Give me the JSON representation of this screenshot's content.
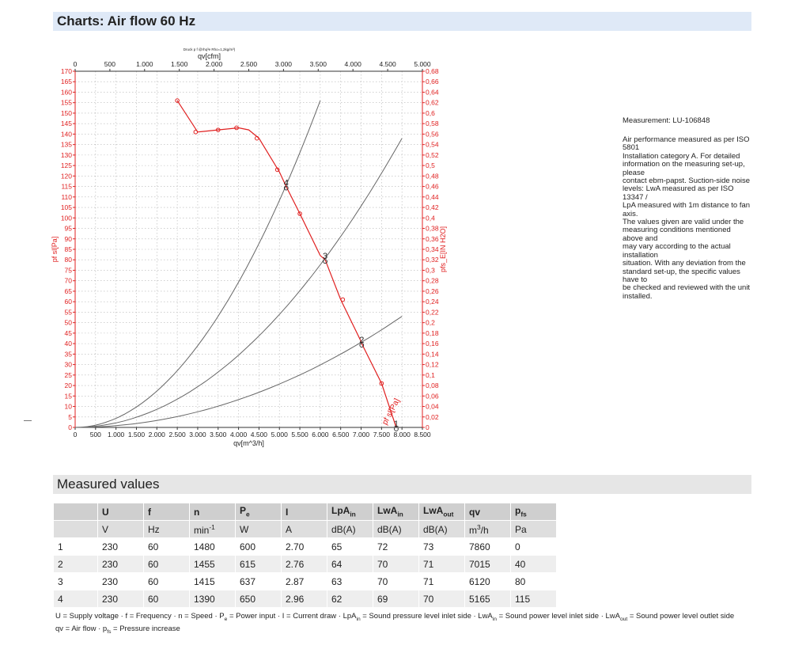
{
  "header": {
    "title": "Charts: Air flow 60 Hz"
  },
  "chart": {
    "small_caption": "Druck p f @rhq³e Rho=1,2kg/m³)",
    "left_axis_label": "pf sl[Pa]",
    "right_axis_label": "pfs_E[IN H2O]",
    "bottom_axis_label": "qv[m^3/h]",
    "top_axis_label": "qv[cfm]",
    "curve_label": "pf sl[Pa]"
  },
  "chart_data": {
    "type": "line",
    "xlabel": "qv[m^3/h]",
    "x2label": "qv[cfm]",
    "ylabel": "pf sl[Pa]",
    "y2label": "pfs_E[IN H2O]",
    "xlim": [
      0,
      8500
    ],
    "x2lim": [
      0,
      5000
    ],
    "ylim": [
      0,
      170
    ],
    "y2lim": [
      0,
      0.68
    ],
    "x_ticks": [
      0,
      500,
      1000,
      1500,
      2000,
      2500,
      3000,
      3500,
      4000,
      4500,
      5000,
      5500,
      6000,
      6500,
      7000,
      7500,
      8000,
      8500
    ],
    "x_tick_labels": [
      "0",
      "500",
      "1.000",
      "1.500",
      "2.000",
      "2.500",
      "3.000",
      "3.500",
      "4.000",
      "4.500",
      "5.000",
      "5.500",
      "6.000",
      "6.500",
      "7.000",
      "7.500",
      "8.000",
      "8.500"
    ],
    "x2_ticks": [
      0,
      500,
      1000,
      1500,
      2000,
      2500,
      3000,
      3500,
      4000,
      4500,
      5000
    ],
    "x2_tick_labels": [
      "0",
      "500",
      "1.000",
      "1.500",
      "2.000",
      "2.500",
      "3.000",
      "3.500",
      "4.000",
      "4.500",
      "5.000"
    ],
    "y_ticks": [
      0,
      5,
      10,
      15,
      20,
      25,
      30,
      35,
      40,
      45,
      50,
      55,
      60,
      65,
      70,
      75,
      80,
      85,
      90,
      95,
      100,
      105,
      110,
      115,
      120,
      125,
      130,
      135,
      140,
      145,
      150,
      155,
      160,
      165,
      170
    ],
    "y2_ticks": [
      0,
      0.02,
      0.04,
      0.06,
      0.08,
      0.1,
      0.12,
      0.14,
      0.16,
      0.18,
      0.2,
      0.22,
      0.24,
      0.26,
      0.28,
      0.3,
      0.32,
      0.34,
      0.36,
      0.38,
      0.4,
      0.42,
      0.44,
      0.46,
      0.48,
      0.5,
      0.52,
      0.54,
      0.56,
      0.58,
      0.6,
      0.62,
      0.64,
      0.66,
      0.68
    ],
    "y2_tick_labels": [
      "0",
      "0,02",
      "0,04",
      "0,06",
      "0,08",
      "0,1",
      "0,12",
      "0,14",
      "0,16",
      "0,18",
      "0,2",
      "0,22",
      "0,24",
      "0,26",
      "0,28",
      "0,3",
      "0,32",
      "0,34",
      "0,36",
      "0,38",
      "0,4",
      "0,42",
      "0,44",
      "0,46",
      "0,48",
      "0,5",
      "0,52",
      "0,54",
      "0,56",
      "0,58",
      "0,6",
      "0,62",
      "0,64",
      "0,66",
      "0,68"
    ],
    "grid": true,
    "series": [
      {
        "name": "pf sl[Pa]",
        "color": "#e02020",
        "x": [
          2500,
          3000,
          3500,
          4000,
          4250,
          4500,
          4750,
          5000,
          5165,
          5500,
          6000,
          6120,
          6500,
          7000,
          7015,
          7500,
          7860
        ],
        "y": [
          156,
          141,
          142,
          143,
          142,
          138,
          130,
          122,
          115,
          102,
          82,
          80,
          61,
          41,
          40,
          21,
          0
        ],
        "markers_x": [
          2500,
          2950,
          3500,
          3950,
          4450,
          4950,
          5500,
          6550,
          7500
        ],
        "markers_y": [
          156,
          141,
          142,
          143,
          138,
          123,
          102,
          61,
          21
        ]
      }
    ],
    "system_curves": [
      {
        "color": "#666666",
        "x": [
          0,
          6000
        ],
        "y": [
          0,
          156
        ]
      },
      {
        "color": "#666666",
        "x": [
          0,
          8000
        ],
        "y": [
          0,
          138
        ]
      },
      {
        "color": "#666666",
        "x": [
          0,
          8000
        ],
        "y": [
          0,
          53
        ]
      }
    ],
    "operating_points": [
      {
        "label": "4",
        "x": 5165,
        "y": 115
      },
      {
        "label": "3",
        "x": 6120,
        "y": 80
      },
      {
        "label": "2",
        "x": 7015,
        "y": 40
      },
      {
        "label": "1",
        "x": 7860,
        "y": 0
      }
    ]
  },
  "measurement": {
    "id": "Measurement: LU-106848",
    "text_lines": [
      "Air performance measured as per ISO 5801",
      "Installation category A. For detailed",
      "information on the measuring set-up, please",
      "contact ebm-papst. Suction-side noise",
      "levels: LwA measured as per ISO 13347 /",
      "LpA measured with 1m distance to fan axis.",
      "The values given are valid under the",
      "measuring conditions mentioned above and",
      "may vary according to the actual installation",
      "situation. With any deviation from the",
      "standard set-up, the specific values have to",
      "be checked and reviewed with the unit",
      "installed."
    ]
  },
  "measured": {
    "title": "Measured values",
    "headers": [
      {
        "main": "",
        "sub": ""
      },
      {
        "main": "U",
        "sub": ""
      },
      {
        "main": "f",
        "sub": ""
      },
      {
        "main": "n",
        "sub": ""
      },
      {
        "main": "P",
        "sub": "e"
      },
      {
        "main": "I",
        "sub": ""
      },
      {
        "main": "LpA",
        "sub": "in"
      },
      {
        "main": "LwA",
        "sub": "in"
      },
      {
        "main": "LwA",
        "sub": "out"
      },
      {
        "main": "qv",
        "sub": ""
      },
      {
        "main": "p",
        "sub": "fs"
      }
    ],
    "units": [
      {
        "main": "",
        "sup": ""
      },
      {
        "main": "V",
        "sup": ""
      },
      {
        "main": "Hz",
        "sup": ""
      },
      {
        "main": "min",
        "sup": "-1"
      },
      {
        "main": "W",
        "sup": ""
      },
      {
        "main": "A",
        "sup": ""
      },
      {
        "main": "dB(A)",
        "sup": ""
      },
      {
        "main": "dB(A)",
        "sup": ""
      },
      {
        "main": "dB(A)",
        "sup": ""
      },
      {
        "main": "m",
        "sup": "3",
        "post": "/h"
      },
      {
        "main": "Pa",
        "sup": ""
      }
    ],
    "rows": [
      [
        "1",
        "230",
        "60",
        "1480",
        "600",
        "2.70",
        "65",
        "72",
        "73",
        "7860",
        "0"
      ],
      [
        "2",
        "230",
        "60",
        "1455",
        "615",
        "2.76",
        "64",
        "70",
        "71",
        "7015",
        "40"
      ],
      [
        "3",
        "230",
        "60",
        "1415",
        "637",
        "2.87",
        "63",
        "70",
        "71",
        "6120",
        "80"
      ],
      [
        "4",
        "230",
        "60",
        "1390",
        "650",
        "2.96",
        "62",
        "69",
        "70",
        "5165",
        "115"
      ]
    ]
  },
  "legend": {
    "line1": [
      {
        "t": "U = Supply voltage · f = Frequency · n = Speed · P"
      },
      {
        "sub": "e"
      },
      {
        "t": " = Power input · I = Current draw · LpA"
      },
      {
        "sub": "in"
      },
      {
        "t": " = Sound pressure level inlet side · LwA"
      },
      {
        "sub": "in"
      },
      {
        "t": " = Sound power level inlet side · LwA"
      },
      {
        "sub": "out"
      },
      {
        "t": " = Sound power level outlet side"
      }
    ],
    "line2": [
      {
        "t": "qv = Air flow · p"
      },
      {
        "sub": "fs"
      },
      {
        "t": " = Pressure increase"
      }
    ]
  }
}
